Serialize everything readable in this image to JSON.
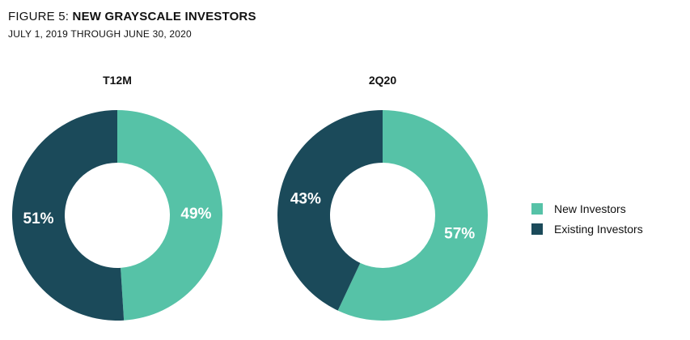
{
  "figure": {
    "label_prefix": "FIGURE 5:",
    "title": "NEW GRAYSCALE INVESTORS",
    "subtitle": "JULY 1, 2019 THROUGH JUNE 30, 2020"
  },
  "colors": {
    "new": "#56c2a7",
    "existing": "#1b4a5a",
    "label": "#ffffff"
  },
  "chart_data": [
    {
      "type": "pie",
      "title": "T12M",
      "categories": [
        "New Investors",
        "Existing Investors"
      ],
      "values": [
        49,
        51
      ],
      "labels": [
        "49%",
        "51%"
      ]
    },
    {
      "type": "pie",
      "title": "2Q20",
      "categories": [
        "New Investors",
        "Existing Investors"
      ],
      "values": [
        57,
        43
      ],
      "labels": [
        "57%",
        "43%"
      ]
    }
  ],
  "legend": {
    "placement": "right",
    "items": [
      {
        "label": "New Investors",
        "color": "#56c2a7"
      },
      {
        "label": "Existing Investors",
        "color": "#1b4a5a"
      }
    ]
  }
}
